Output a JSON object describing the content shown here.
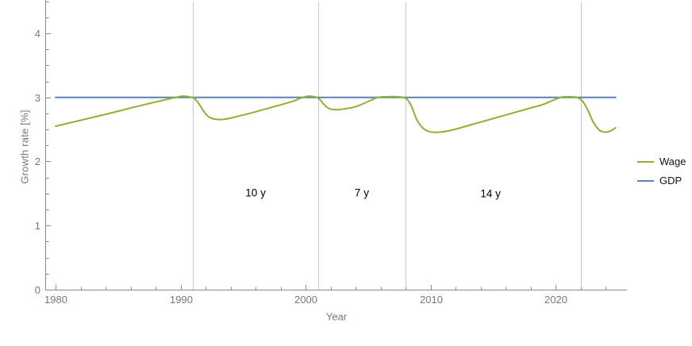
{
  "chart_data": {
    "type": "line",
    "title": "",
    "xlabel": "Year",
    "ylabel": "Growth rate [%]",
    "xlim": [
      1979.17,
      2025.71
    ],
    "ylim": [
      0,
      4.52
    ],
    "x_major_ticks": [
      1980,
      1990,
      2000,
      2010,
      2020
    ],
    "x_minor_step": 2,
    "x_minor_range": [
      1982,
      2024
    ],
    "y_major_ticks": [
      0,
      1,
      2,
      3,
      4
    ],
    "y_minor_step": 0.25,
    "grid": "vertical-only",
    "gridlines_x": [
      1991,
      2001,
      2008,
      2022
    ],
    "legend_position": "right-outside",
    "series": [
      {
        "name": "Wage",
        "color": "#8fb032",
        "smooth": true,
        "points": [
          [
            1980.0,
            2.55
          ],
          [
            1981.5,
            2.62
          ],
          [
            1983.0,
            2.69
          ],
          [
            1984.5,
            2.76
          ],
          [
            1986.0,
            2.835
          ],
          [
            1987.5,
            2.905
          ],
          [
            1988.8,
            2.965
          ],
          [
            1989.6,
            3.0
          ],
          [
            1990.2,
            3.02
          ],
          [
            1990.8,
            3.005
          ],
          [
            1991.1,
            2.985
          ],
          [
            1991.5,
            2.89
          ],
          [
            1991.9,
            2.77
          ],
          [
            1992.3,
            2.69
          ],
          [
            1992.8,
            2.66
          ],
          [
            1993.4,
            2.657
          ],
          [
            1994.0,
            2.678
          ],
          [
            1995.0,
            2.725
          ],
          [
            1996.0,
            2.775
          ],
          [
            1997.0,
            2.83
          ],
          [
            1998.0,
            2.885
          ],
          [
            1999.0,
            2.94
          ],
          [
            1999.7,
            2.995
          ],
          [
            2000.3,
            3.02
          ],
          [
            2000.8,
            3.005
          ],
          [
            2001.1,
            2.975
          ],
          [
            2001.5,
            2.885
          ],
          [
            2001.9,
            2.825
          ],
          [
            2002.4,
            2.808
          ],
          [
            2003.0,
            2.818
          ],
          [
            2004.0,
            2.855
          ],
          [
            2005.0,
            2.935
          ],
          [
            2005.7,
            2.995
          ],
          [
            2006.4,
            3.01
          ],
          [
            2007.2,
            3.012
          ],
          [
            2007.7,
            3.002
          ],
          [
            2008.1,
            2.975
          ],
          [
            2008.5,
            2.85
          ],
          [
            2008.9,
            2.65
          ],
          [
            2009.4,
            2.52
          ],
          [
            2009.9,
            2.465
          ],
          [
            2010.5,
            2.455
          ],
          [
            2011.2,
            2.47
          ],
          [
            2012.0,
            2.505
          ],
          [
            2013.0,
            2.56
          ],
          [
            2014.0,
            2.615
          ],
          [
            2015.0,
            2.67
          ],
          [
            2016.0,
            2.725
          ],
          [
            2017.0,
            2.78
          ],
          [
            2018.0,
            2.835
          ],
          [
            2019.0,
            2.89
          ],
          [
            2019.8,
            2.955
          ],
          [
            2020.5,
            3.005
          ],
          [
            2021.2,
            3.01
          ],
          [
            2021.8,
            2.995
          ],
          [
            2022.2,
            2.93
          ],
          [
            2022.6,
            2.795
          ],
          [
            2023.0,
            2.62
          ],
          [
            2023.5,
            2.49
          ],
          [
            2024.0,
            2.458
          ],
          [
            2024.4,
            2.478
          ],
          [
            2024.8,
            2.525
          ]
        ]
      },
      {
        "name": "GDP",
        "color": "#5e81b5",
        "smooth": false,
        "points": [
          [
            1980.0,
            3.0
          ],
          [
            2024.8,
            3.0
          ]
        ]
      }
    ],
    "annotations": [
      {
        "text": "10 y",
        "x": 1996.0,
        "y": 1.51
      },
      {
        "text": "7 y",
        "x": 2004.5,
        "y": 1.51
      },
      {
        "text": "14 y",
        "x": 2014.8,
        "y": 1.5
      }
    ]
  },
  "style": {
    "axis_color": "#8a8a8a",
    "grid_color": "#c9c9c9",
    "tick_label_color": "#6e7a84",
    "annotation_color": "#000000",
    "legend_text_color": "#141414"
  }
}
